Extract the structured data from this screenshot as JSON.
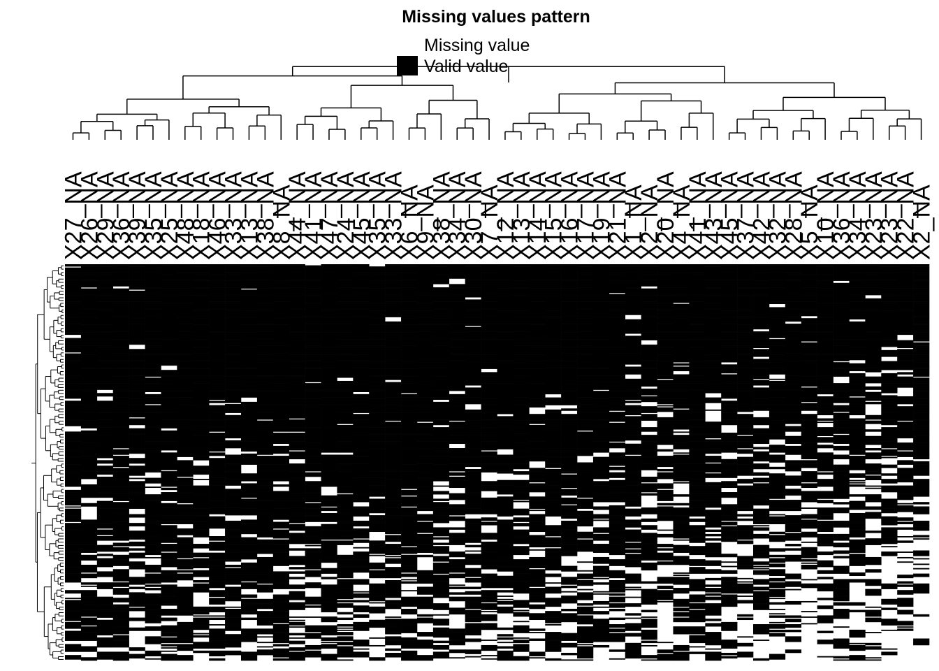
{
  "chart_data": {
    "type": "heatmap",
    "title": "Missing values pattern",
    "legend": [
      {
        "label": "Missing value",
        "color": "#ffffff"
      },
      {
        "label": "Valid value",
        "color": "#000000"
      }
    ],
    "columns": [
      "X27_NA",
      "X26_NA",
      "X29_NA",
      "X36_NA",
      "X39_NA",
      "X35_NA",
      "X25_NA",
      "X48_NA",
      "X18_NA",
      "X46_NA",
      "X33_NA",
      "X13_NA",
      "X38_NA",
      "X8_NA",
      "X44_NA",
      "X41_NA",
      "X47_NA",
      "X24_NA",
      "X45_NA",
      "X35_NA",
      "X33_NA",
      "X6_NA",
      "X9_NA",
      "X38_NA",
      "X34_NA",
      "X30_NA",
      "X7_NA",
      "X12_NA",
      "X13_NA",
      "X14_NA",
      "X15_NA",
      "X16_NA",
      "X17_NA",
      "X19_NA",
      "X21_NA",
      "X1_NA",
      "X2_NA",
      "X20_NA",
      "X4_NA",
      "X41_NA",
      "X43_NA",
      "X45_NA",
      "X37_NA",
      "X42_NA",
      "X32_NA",
      "X28_NA",
      "X5_NA",
      "X10_NA",
      "X36_NA",
      "X34_NA",
      "X23_NA",
      "X23_NA",
      "X22_NA",
      "X2_NA"
    ],
    "col_valid_fraction": [
      0.82,
      0.78,
      0.74,
      0.8,
      0.75,
      0.82,
      0.79,
      0.8,
      0.76,
      0.74,
      0.82,
      0.8,
      0.77,
      0.79,
      0.77,
      0.8,
      0.79,
      0.78,
      0.76,
      0.78,
      0.8,
      0.78,
      0.77,
      0.79,
      0.76,
      0.78,
      0.74,
      0.72,
      0.74,
      0.74,
      0.75,
      0.72,
      0.74,
      0.72,
      0.72,
      0.7,
      0.72,
      0.6,
      0.64,
      0.7,
      0.66,
      0.64,
      0.64,
      0.62,
      0.63,
      0.6,
      0.6,
      0.62,
      0.58,
      0.58,
      0.52,
      0.5,
      0.5,
      0.52
    ],
    "n_rows": 360,
    "row_dendrogram": true,
    "col_dendrogram": true,
    "legend_position": "top"
  }
}
